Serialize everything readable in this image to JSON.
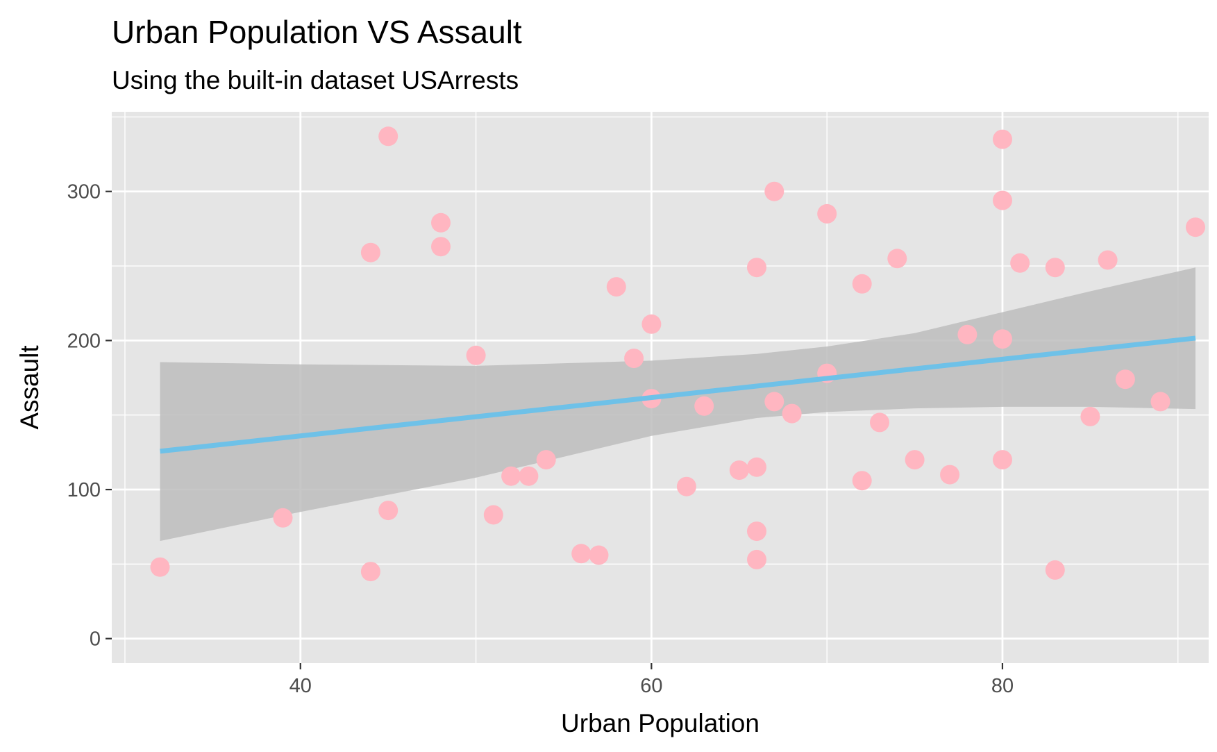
{
  "chart_data": {
    "type": "scatter",
    "title": "Urban Population VS Assault",
    "subtitle": "Using the built-in dataset USArrests",
    "xlabel": "Urban Population",
    "ylabel": "Assault",
    "xlim": [
      29.25,
      91.75
    ],
    "ylim": [
      -16.45,
      353.45
    ],
    "x_ticks": [
      40,
      60,
      80
    ],
    "x_minor_ticks": [
      30,
      50,
      70,
      90
    ],
    "y_ticks": [
      0,
      100,
      200,
      300
    ],
    "y_minor_ticks": [
      50,
      150,
      250,
      350
    ],
    "grid": true,
    "panel_background": "#e5e5e5",
    "point_color": "#ffb6c1",
    "fit_line_color": "#6ec1e8",
    "confidence_band_color": "#bdbdbd",
    "points": [
      {
        "x": 58,
        "y": 236
      },
      {
        "x": 48,
        "y": 263
      },
      {
        "x": 80,
        "y": 294
      },
      {
        "x": 50,
        "y": 190
      },
      {
        "x": 91,
        "y": 276
      },
      {
        "x": 78,
        "y": 204
      },
      {
        "x": 77,
        "y": 110
      },
      {
        "x": 72,
        "y": 238
      },
      {
        "x": 80,
        "y": 335
      },
      {
        "x": 60,
        "y": 211
      },
      {
        "x": 83,
        "y": 46
      },
      {
        "x": 54,
        "y": 120
      },
      {
        "x": 83,
        "y": 249
      },
      {
        "x": 65,
        "y": 113
      },
      {
        "x": 57,
        "y": 56
      },
      {
        "x": 66,
        "y": 115
      },
      {
        "x": 52,
        "y": 109
      },
      {
        "x": 66,
        "y": 249
      },
      {
        "x": 51,
        "y": 83
      },
      {
        "x": 67,
        "y": 300
      },
      {
        "x": 85,
        "y": 149
      },
      {
        "x": 74,
        "y": 255
      },
      {
        "x": 66,
        "y": 72
      },
      {
        "x": 44,
        "y": 259
      },
      {
        "x": 70,
        "y": 178
      },
      {
        "x": 53,
        "y": 109
      },
      {
        "x": 62,
        "y": 102
      },
      {
        "x": 81,
        "y": 252
      },
      {
        "x": 56,
        "y": 57
      },
      {
        "x": 89,
        "y": 159
      },
      {
        "x": 70,
        "y": 285
      },
      {
        "x": 86,
        "y": 254
      },
      {
        "x": 45,
        "y": 337
      },
      {
        "x": 44,
        "y": 45
      },
      {
        "x": 75,
        "y": 120
      },
      {
        "x": 68,
        "y": 151
      },
      {
        "x": 67,
        "y": 159
      },
      {
        "x": 72,
        "y": 106
      },
      {
        "x": 87,
        "y": 174
      },
      {
        "x": 48,
        "y": 279
      },
      {
        "x": 45,
        "y": 86
      },
      {
        "x": 59,
        "y": 188
      },
      {
        "x": 80,
        "y": 201
      },
      {
        "x": 80,
        "y": 120
      },
      {
        "x": 32,
        "y": 48
      },
      {
        "x": 63,
        "y": 156
      },
      {
        "x": 73,
        "y": 145
      },
      {
        "x": 39,
        "y": 81
      },
      {
        "x": 66,
        "y": 53
      },
      {
        "x": 60,
        "y": 161
      }
    ],
    "fit_line": {
      "x": [
        32,
        91
      ],
      "y": [
        125.7,
        201.6
      ]
    },
    "confidence_band": {
      "x": [
        32,
        40,
        50,
        60,
        66,
        70,
        75,
        80,
        85,
        91
      ],
      "upper": [
        185.5,
        184.0,
        183.0,
        186.5,
        191.0,
        196.0,
        205.0,
        219.0,
        233.0,
        249.0
      ],
      "lower": [
        65.5,
        85.0,
        108.0,
        136.0,
        148.0,
        152.0,
        154.5,
        155.5,
        155.5,
        154.0
      ]
    }
  }
}
